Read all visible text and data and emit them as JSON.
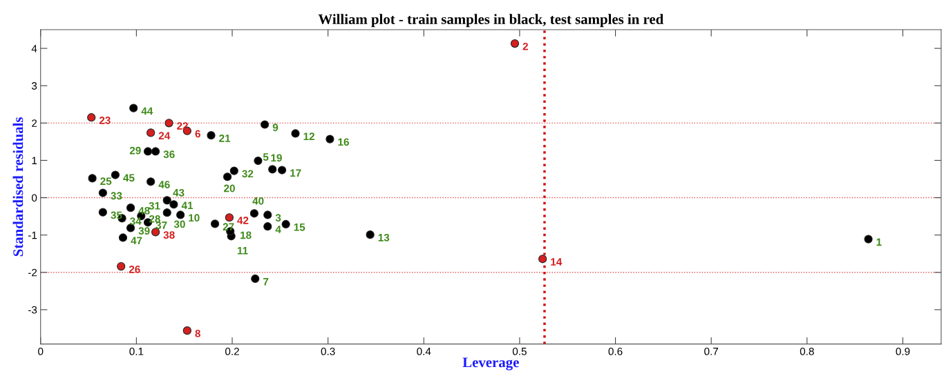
{
  "chart_data": {
    "type": "scatter",
    "title": "William plot - train samples in black, test samples in red",
    "xlabel": "Leverage",
    "ylabel": "Standardised residuals",
    "xlim": [
      0,
      0.94
    ],
    "ylim": [
      -3.92,
      4.5
    ],
    "xticks": [
      0,
      0.1,
      0.2,
      0.3,
      0.4,
      0.5,
      0.6,
      0.7,
      0.8,
      0.9
    ],
    "yticks": [
      -3,
      -2,
      -1,
      0,
      1,
      2,
      3,
      4
    ],
    "grid": false,
    "legend": false,
    "marker": "circle",
    "ref_lines": [
      {
        "axis": "y",
        "value": 2,
        "color": "#e05050",
        "line_style": "dotted"
      },
      {
        "axis": "y",
        "value": 0,
        "color": "#e05050",
        "line_style": "dotted"
      },
      {
        "axis": "y",
        "value": -2,
        "color": "#e05050",
        "line_style": "dotted"
      },
      {
        "axis": "x",
        "value": 0.526,
        "color": "#d01010",
        "line_style": "dotted"
      }
    ],
    "series": [
      {
        "color": "#000000",
        "x": [
          0.864,
          0.237,
          0.237,
          0.227,
          0.224,
          0.234,
          0.146,
          0.199,
          0.266,
          0.344,
          0.256,
          0.302,
          0.252,
          0.198,
          0.242,
          0.195,
          0.178,
          0.054,
          0.182,
          0.105,
          0.112,
          0.132,
          null,
          0.202,
          0.065,
          0.085,
          0.065,
          0.12,
          0.112,
          0.094,
          0.223,
          0.139,
          0.132,
          0.097,
          0.078,
          0.115,
          0.086,
          0.094
        ],
        "values": [
          -1.11,
          -0.46,
          -0.77,
          0.99,
          -2.17,
          1.96,
          -0.46,
          -1.03,
          1.72,
          -0.99,
          -0.71,
          1.57,
          0.74,
          -0.9,
          0.76,
          0.56,
          1.67,
          0.52,
          -0.7,
          -0.49,
          1.24,
          -0.4,
          null,
          0.72,
          0.13,
          -0.55,
          -0.39,
          1.24,
          -0.66,
          -0.81,
          -0.42,
          -0.18,
          -0.07,
          2.4,
          0.61,
          0.43,
          -1.07,
          -0.27
        ]
      },
      {
        "color": "#d42020",
        "x": [
          0.495,
          0.153,
          0.153,
          0.524,
          0.134,
          0.053,
          0.115,
          0.084,
          0.12,
          0.197
        ],
        "values": [
          4.13,
          1.79,
          -3.56,
          -1.64,
          2.0,
          2.15,
          1.74,
          -1.84,
          -0.92,
          -0.53
        ]
      }
    ],
    "annotations": [
      {
        "text": "1",
        "x": 0.864,
        "y": -1.11
      },
      {
        "text": "2",
        "x": 0.495,
        "y": 4.13
      },
      {
        "text": "3",
        "x": 0.237,
        "y": -0.46
      },
      {
        "text": "4",
        "x": 0.237,
        "y": -0.77
      },
      {
        "text": "5",
        "x": 0.227,
        "y": 0.99
      },
      {
        "text": "6",
        "x": 0.153,
        "y": 1.79
      },
      {
        "text": "7",
        "x": 0.224,
        "y": -2.17
      },
      {
        "text": "8",
        "x": 0.153,
        "y": -3.56
      },
      {
        "text": "9",
        "x": 0.234,
        "y": 1.96
      },
      {
        "text": "10",
        "x": 0.146,
        "y": -0.46
      },
      {
        "text": "11",
        "x": 0.199,
        "y": -1.03
      },
      {
        "text": "12",
        "x": 0.266,
        "y": 1.72
      },
      {
        "text": "13",
        "x": 0.344,
        "y": -0.99
      },
      {
        "text": "14",
        "x": 0.524,
        "y": -1.64
      },
      {
        "text": "15",
        "x": 0.256,
        "y": -0.71
      },
      {
        "text": "16",
        "x": 0.302,
        "y": 1.57
      },
      {
        "text": "17",
        "x": 0.252,
        "y": 0.74
      },
      {
        "text": "18",
        "x": 0.198,
        "y": -0.9
      },
      {
        "text": "19",
        "x": 0.242,
        "y": 0.76
      },
      {
        "text": "20",
        "x": 0.195,
        "y": 0.56
      },
      {
        "text": "21",
        "x": 0.178,
        "y": 1.67
      },
      {
        "text": "22",
        "x": 0.134,
        "y": 2.0
      },
      {
        "text": "23",
        "x": 0.053,
        "y": 2.15
      },
      {
        "text": "24",
        "x": 0.115,
        "y": 1.74
      },
      {
        "text": "25",
        "x": 0.054,
        "y": 0.52
      },
      {
        "text": "26",
        "x": 0.084,
        "y": -1.84
      },
      {
        "text": "27",
        "x": 0.182,
        "y": -0.7
      },
      {
        "text": "28",
        "x": 0.105,
        "y": -0.49
      },
      {
        "text": "29",
        "x": 0.112,
        "y": 1.24
      },
      {
        "text": "30",
        "x": 0.132,
        "y": -0.4
      },
      {
        "text": "31",
        "x": 0.131,
        "y": -0.37
      },
      {
        "text": "32",
        "x": 0.202,
        "y": 0.72
      },
      {
        "text": "33",
        "x": 0.065,
        "y": 0.13
      },
      {
        "text": "34",
        "x": 0.085,
        "y": -0.55
      },
      {
        "text": "35",
        "x": 0.065,
        "y": -0.39
      },
      {
        "text": "36",
        "x": 0.12,
        "y": 1.24
      },
      {
        "text": "37",
        "x": 0.112,
        "y": -0.66
      },
      {
        "text": "38",
        "x": 0.12,
        "y": -0.92
      },
      {
        "text": "39",
        "x": 0.094,
        "y": -0.81
      },
      {
        "text": "40",
        "x": 0.223,
        "y": -0.42
      },
      {
        "text": "41",
        "x": 0.139,
        "y": -0.18
      },
      {
        "text": "42",
        "x": 0.197,
        "y": -0.53
      },
      {
        "text": "43",
        "x": 0.132,
        "y": -0.07
      },
      {
        "text": "44",
        "x": 0.097,
        "y": 2.4
      },
      {
        "text": "45",
        "x": 0.078,
        "y": 0.61
      },
      {
        "text": "46",
        "x": 0.115,
        "y": 0.43
      },
      {
        "text": "47",
        "x": 0.086,
        "y": -1.07
      },
      {
        "text": "48",
        "x": 0.094,
        "y": -0.27
      }
    ]
  }
}
